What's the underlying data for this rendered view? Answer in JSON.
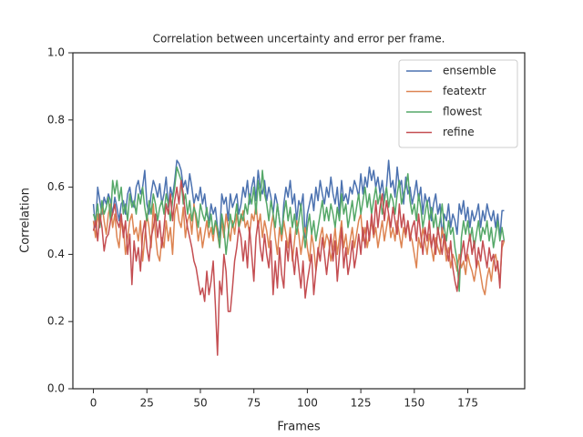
{
  "chart_data": {
    "type": "line",
    "title": "Correlation between uncertainty and error per frame.",
    "x_label": "Frames",
    "y_label": "Correlation",
    "xlim": [
      -9.6,
      201.6
    ],
    "ylim": [
      0,
      1
    ],
    "xticks": [
      0,
      25,
      50,
      75,
      100,
      125,
      150,
      175
    ],
    "yticks": [
      {
        "value": 0,
        "label": "0.0"
      },
      {
        "value": 0.2,
        "label": "0.2"
      },
      {
        "value": 0.4,
        "label": "0.4"
      },
      {
        "value": 0.6,
        "label": "0.6"
      },
      {
        "value": 0.8,
        "label": "0.8"
      },
      {
        "value": 1,
        "label": "1.0"
      }
    ],
    "grid": false,
    "legend": "upper right",
    "x": [
      0,
      1,
      2,
      3,
      4,
      5,
      6,
      7,
      8,
      9,
      10,
      11,
      12,
      13,
      14,
      15,
      16,
      17,
      18,
      19,
      20,
      21,
      22,
      23,
      24,
      25,
      26,
      27,
      28,
      29,
      30,
      31,
      32,
      33,
      34,
      35,
      36,
      37,
      38,
      39,
      40,
      41,
      42,
      43,
      44,
      45,
      46,
      47,
      48,
      49,
      50,
      51,
      52,
      53,
      54,
      55,
      56,
      57,
      58,
      59,
      60,
      61,
      62,
      63,
      64,
      65,
      66,
      67,
      68,
      69,
      70,
      71,
      72,
      73,
      74,
      75,
      76,
      77,
      78,
      79,
      80,
      81,
      82,
      83,
      84,
      85,
      86,
      87,
      88,
      89,
      90,
      91,
      92,
      93,
      94,
      95,
      96,
      97,
      98,
      99,
      100,
      101,
      102,
      103,
      104,
      105,
      106,
      107,
      108,
      109,
      110,
      111,
      112,
      113,
      114,
      115,
      116,
      117,
      118,
      119,
      120,
      121,
      122,
      123,
      124,
      125,
      126,
      127,
      128,
      129,
      130,
      131,
      132,
      133,
      134,
      135,
      136,
      137,
      138,
      139,
      140,
      141,
      142,
      143,
      144,
      145,
      146,
      147,
      148,
      149,
      150,
      151,
      152,
      153,
      154,
      155,
      156,
      157,
      158,
      159,
      160,
      161,
      162,
      163,
      164,
      165,
      166,
      167,
      168,
      169,
      170,
      171,
      172,
      173,
      174,
      175,
      176,
      177,
      178,
      179,
      180,
      181,
      182,
      183,
      184,
      185,
      186,
      187,
      188,
      189,
      190,
      191,
      192
    ],
    "series": [
      {
        "name": "ensemble",
        "color": "#4c72b0",
        "values": [
          0.55,
          0.48,
          0.6,
          0.56,
          0.52,
          0.57,
          0.55,
          0.58,
          0.56,
          0.52,
          0.57,
          0.54,
          0.5,
          0.55,
          0.56,
          0.52,
          0.58,
          0.6,
          0.56,
          0.54,
          0.6,
          0.62,
          0.58,
          0.6,
          0.65,
          0.55,
          0.52,
          0.58,
          0.62,
          0.6,
          0.57,
          0.61,
          0.55,
          0.58,
          0.63,
          0.54,
          0.6,
          0.57,
          0.62,
          0.68,
          0.67,
          0.65,
          0.6,
          0.62,
          0.58,
          0.64,
          0.6,
          0.55,
          0.58,
          0.56,
          0.6,
          0.55,
          0.58,
          0.52,
          0.5,
          0.55,
          0.52,
          0.54,
          0.48,
          0.45,
          0.58,
          0.55,
          0.57,
          0.5,
          0.58,
          0.54,
          0.56,
          0.58,
          0.52,
          0.55,
          0.6,
          0.57,
          0.62,
          0.55,
          0.6,
          0.63,
          0.56,
          0.65,
          0.6,
          0.58,
          0.62,
          0.56,
          0.6,
          0.57,
          0.52,
          0.58,
          0.55,
          0.5,
          0.45,
          0.55,
          0.6,
          0.57,
          0.62,
          0.55,
          0.58,
          0.5,
          0.56,
          0.54,
          0.58,
          0.45,
          0.52,
          0.55,
          0.58,
          0.53,
          0.6,
          0.56,
          0.62,
          0.58,
          0.55,
          0.6,
          0.57,
          0.63,
          0.58,
          0.55,
          0.6,
          0.52,
          0.62,
          0.56,
          0.58,
          0.55,
          0.6,
          0.58,
          0.62,
          0.6,
          0.57,
          0.64,
          0.58,
          0.63,
          0.6,
          0.66,
          0.62,
          0.65,
          0.6,
          0.63,
          0.58,
          0.62,
          0.56,
          0.6,
          0.68,
          0.6,
          0.62,
          0.57,
          0.66,
          0.6,
          0.62,
          0.55,
          0.63,
          0.58,
          0.6,
          0.55,
          0.58,
          0.62,
          0.56,
          0.6,
          0.52,
          0.58,
          0.55,
          0.57,
          0.5,
          0.55,
          0.58,
          0.52,
          0.55,
          0.45,
          0.52,
          0.5,
          0.55,
          0.48,
          0.52,
          0.5,
          0.46,
          0.55,
          0.52,
          0.56,
          0.5,
          0.54,
          0.48,
          0.53,
          0.5,
          0.52,
          0.55,
          0.48,
          0.53,
          0.5,
          0.55,
          0.52,
          0.5,
          0.53,
          0.48,
          0.52,
          0.45,
          0.53,
          0.53
        ]
      },
      {
        "name": "featextr",
        "color": "#dd8452",
        "values": [
          0.5,
          0.45,
          0.52,
          0.48,
          0.55,
          0.5,
          0.46,
          0.52,
          0.55,
          0.48,
          0.52,
          0.45,
          0.42,
          0.5,
          0.48,
          0.4,
          0.45,
          0.5,
          0.52,
          0.46,
          0.48,
          0.44,
          0.5,
          0.38,
          0.45,
          0.52,
          0.48,
          0.42,
          0.55,
          0.46,
          0.4,
          0.38,
          0.45,
          0.42,
          0.5,
          0.44,
          0.48,
          0.4,
          0.52,
          0.55,
          0.5,
          0.48,
          0.54,
          0.45,
          0.5,
          0.52,
          0.46,
          0.55,
          0.5,
          0.44,
          0.48,
          0.42,
          0.46,
          0.5,
          0.45,
          0.48,
          0.44,
          0.5,
          0.46,
          0.42,
          0.5,
          0.45,
          0.52,
          0.48,
          0.44,
          0.5,
          0.46,
          0.52,
          0.48,
          0.5,
          0.53,
          0.48,
          0.5,
          0.46,
          0.52,
          0.5,
          0.55,
          0.48,
          0.52,
          0.45,
          0.5,
          0.47,
          0.42,
          0.48,
          0.52,
          0.45,
          0.4,
          0.48,
          0.44,
          0.5,
          0.46,
          0.42,
          0.48,
          0.38,
          0.44,
          0.5,
          0.46,
          0.4,
          0.45,
          0.48,
          0.42,
          0.38,
          0.46,
          0.42,
          0.35,
          0.4,
          0.45,
          0.48,
          0.42,
          0.46,
          0.44,
          0.38,
          0.42,
          0.48,
          0.4,
          0.45,
          0.5,
          0.42,
          0.46,
          0.4,
          0.44,
          0.48,
          0.42,
          0.46,
          0.5,
          0.52,
          0.44,
          0.48,
          0.42,
          0.46,
          0.5,
          0.45,
          0.48,
          0.42,
          0.46,
          0.5,
          0.44,
          0.48,
          0.52,
          0.45,
          0.48,
          0.44,
          0.5,
          0.46,
          0.42,
          0.48,
          0.45,
          0.5,
          0.46,
          0.44,
          0.4,
          0.36,
          0.45,
          0.42,
          0.48,
          0.44,
          0.4,
          0.46,
          0.42,
          0.38,
          0.45,
          0.42,
          0.4,
          0.48,
          0.44,
          0.38,
          0.42,
          0.36,
          0.4,
          0.38,
          0.35,
          0.4,
          0.36,
          0.38,
          0.34,
          0.4,
          0.37,
          0.35,
          0.32,
          0.36,
          0.38,
          0.34,
          0.3,
          0.28,
          0.33,
          0.36,
          0.32,
          0.38,
          0.4,
          0.36,
          0.32,
          0.42,
          0.44
        ]
      },
      {
        "name": "flowest",
        "color": "#55a868",
        "values": [
          0.52,
          0.5,
          0.55,
          0.48,
          0.56,
          0.52,
          0.54,
          0.57,
          0.5,
          0.62,
          0.58,
          0.62,
          0.56,
          0.6,
          0.52,
          0.55,
          0.5,
          0.58,
          0.54,
          0.56,
          0.52,
          0.58,
          0.55,
          0.6,
          0.54,
          0.5,
          0.56,
          0.52,
          0.58,
          0.55,
          0.5,
          0.54,
          0.56,
          0.52,
          0.58,
          0.55,
          0.5,
          0.56,
          0.6,
          0.66,
          0.64,
          0.62,
          0.55,
          0.58,
          0.52,
          0.56,
          0.5,
          0.54,
          0.52,
          0.48,
          0.55,
          0.52,
          0.5,
          0.54,
          0.48,
          0.52,
          0.46,
          0.5,
          0.48,
          0.42,
          0.52,
          0.48,
          0.4,
          0.46,
          0.52,
          0.48,
          0.5,
          0.55,
          0.48,
          0.52,
          0.5,
          0.55,
          0.52,
          0.58,
          0.55,
          0.6,
          0.52,
          0.62,
          0.56,
          0.65,
          0.58,
          0.55,
          0.5,
          0.56,
          0.52,
          0.48,
          0.55,
          0.5,
          0.46,
          0.52,
          0.56,
          0.5,
          0.54,
          0.48,
          0.52,
          0.46,
          0.5,
          0.55,
          0.48,
          0.42,
          0.48,
          0.52,
          0.46,
          0.5,
          0.44,
          0.48,
          0.52,
          0.56,
          0.5,
          0.54,
          0.5,
          0.55,
          0.52,
          0.48,
          0.54,
          0.5,
          0.58,
          0.52,
          0.55,
          0.48,
          0.52,
          0.56,
          0.5,
          0.54,
          0.58,
          0.52,
          0.56,
          0.6,
          0.54,
          0.58,
          0.52,
          0.56,
          0.6,
          0.55,
          0.58,
          0.52,
          0.56,
          0.6,
          0.54,
          0.58,
          0.56,
          0.52,
          0.58,
          0.62,
          0.55,
          0.58,
          0.6,
          0.64,
          0.56,
          0.52,
          0.55,
          0.5,
          0.58,
          0.54,
          0.48,
          0.52,
          0.56,
          0.5,
          0.54,
          0.48,
          0.52,
          0.46,
          0.5,
          0.55,
          0.48,
          0.44,
          0.5,
          0.46,
          0.48,
          0.42,
          0.38,
          0.29,
          0.45,
          0.5,
          0.46,
          0.5,
          0.44,
          0.48,
          0.42,
          0.46,
          0.5,
          0.44,
          0.48,
          0.46,
          0.5,
          0.44,
          0.48,
          0.42,
          0.46,
          0.5,
          0.44,
          0.48,
          0.44
        ]
      },
      {
        "name": "refine",
        "color": "#c44e52",
        "values": [
          0.47,
          0.5,
          0.44,
          0.52,
          0.48,
          0.41,
          0.45,
          0.46,
          0.5,
          0.52,
          0.55,
          0.5,
          0.48,
          0.52,
          0.45,
          0.5,
          0.4,
          0.46,
          0.31,
          0.44,
          0.38,
          0.42,
          0.35,
          0.46,
          0.5,
          0.42,
          0.38,
          0.45,
          0.48,
          0.52,
          0.45,
          0.5,
          0.42,
          0.48,
          0.55,
          0.52,
          0.58,
          0.5,
          0.56,
          0.6,
          0.55,
          0.62,
          0.58,
          0.52,
          0.48,
          0.45,
          0.42,
          0.38,
          0.36,
          0.32,
          0.28,
          0.3,
          0.26,
          0.35,
          0.28,
          0.32,
          0.38,
          0.25,
          0.1,
          0.32,
          0.28,
          0.4,
          0.35,
          0.23,
          0.23,
          0.3,
          0.38,
          0.42,
          0.48,
          0.45,
          0.38,
          0.44,
          0.36,
          0.48,
          0.4,
          0.32,
          0.45,
          0.5,
          0.42,
          0.38,
          0.46,
          0.4,
          0.36,
          0.44,
          0.28,
          0.38,
          0.3,
          0.42,
          0.34,
          0.3,
          0.44,
          0.38,
          0.46,
          0.4,
          0.34,
          0.42,
          0.36,
          0.3,
          0.38,
          0.27,
          0.32,
          0.36,
          0.4,
          0.28,
          0.35,
          0.42,
          0.38,
          0.45,
          0.4,
          0.34,
          0.4,
          0.46,
          0.38,
          0.44,
          0.32,
          0.4,
          0.48,
          0.36,
          0.42,
          0.34,
          0.38,
          0.44,
          0.36,
          0.4,
          0.46,
          0.4,
          0.48,
          0.42,
          0.5,
          0.44,
          0.52,
          0.46,
          0.56,
          0.48,
          0.54,
          0.58,
          0.5,
          0.56,
          0.52,
          0.48,
          0.54,
          0.5,
          0.46,
          0.55,
          0.48,
          0.52,
          0.46,
          0.5,
          0.44,
          0.48,
          0.5,
          0.44,
          0.52,
          0.46,
          0.4,
          0.48,
          0.44,
          0.5,
          0.42,
          0.46,
          0.4,
          0.48,
          0.44,
          0.4,
          0.46,
          0.42,
          0.38,
          0.44,
          0.36,
          0.32,
          0.29,
          0.35,
          0.4,
          0.44,
          0.38,
          0.42,
          0.46,
          0.4,
          0.44,
          0.36,
          0.42,
          0.38,
          0.44,
          0.4,
          0.36,
          0.42,
          0.38,
          0.4,
          0.35,
          0.38,
          0.3,
          0.44,
          0.44
        ]
      }
    ]
  }
}
